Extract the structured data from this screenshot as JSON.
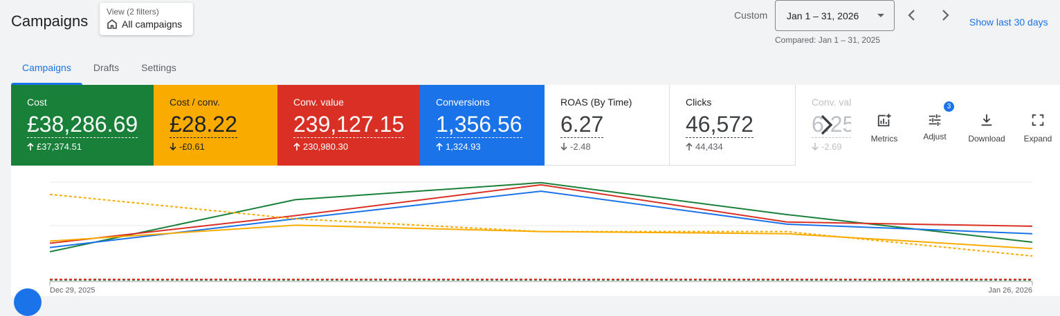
{
  "header": {
    "title": "Campaigns",
    "view_label": "View (2 filters)",
    "view_value": "All campaigns",
    "custom_label": "Custom",
    "date_range": "Jan 1 – 31, 2026",
    "compared": "Compared: Jan 1 – 31, 2025",
    "show_last": "Show last 30 days"
  },
  "tabs": [
    {
      "label": "Campaigns",
      "active": true
    },
    {
      "label": "Drafts",
      "active": false
    },
    {
      "label": "Settings",
      "active": false
    }
  ],
  "metrics": [
    {
      "name": "Cost",
      "value": "£38,286.69",
      "delta": "£37,374.51",
      "direction": "up",
      "color": "#188038"
    },
    {
      "name": "Cost / conv.",
      "value": "£28.22",
      "delta": "-£0.61",
      "direction": "down",
      "color": "#f9ab00"
    },
    {
      "name": "Conv. value",
      "value": "239,127.15",
      "delta": "230,980.30",
      "direction": "up",
      "color": "#d93025"
    },
    {
      "name": "Conversions",
      "value": "1,356.56",
      "delta": "1,324.93",
      "direction": "up",
      "color": "#1a73e8"
    },
    {
      "name": "ROAS (By Time)",
      "value": "6.27",
      "delta": "-2.48",
      "direction": "down"
    },
    {
      "name": "Clicks",
      "value": "46,572",
      "delta": "44,434",
      "direction": "up"
    },
    {
      "name": "Conv. val",
      "value": "6.25",
      "delta": "-2.69",
      "direction": "down"
    }
  ],
  "toolbar": {
    "metrics_label": "Metrics",
    "adjust_label": "Adjust",
    "adjust_badge": "3",
    "download_label": "Download",
    "expand_label": "Expand"
  },
  "chart_data": {
    "type": "line",
    "x_start_label": "Dec 29, 2025",
    "x_end_label": "Jan 26, 2026",
    "x": [
      0,
      1,
      2,
      3,
      4
    ],
    "series": [
      {
        "color": "#188038",
        "dashed": false,
        "values": [
          0.28,
          0.77,
          0.93,
          0.63,
          0.37
        ]
      },
      {
        "color": "#d93025",
        "dashed": false,
        "values": [
          0.36,
          0.62,
          0.91,
          0.56,
          0.52
        ]
      },
      {
        "color": "#1a73e8",
        "dashed": false,
        "values": [
          0.32,
          0.59,
          0.85,
          0.54,
          0.45
        ]
      },
      {
        "color": "#f9ab00",
        "dashed": false,
        "values": [
          0.38,
          0.53,
          0.47,
          0.45,
          0.31
        ]
      },
      {
        "color": "#f9ab00",
        "dashed": true,
        "values": [
          0.82,
          0.59,
          0.47,
          0.47,
          0.24
        ]
      },
      {
        "color": "#188038",
        "dashed": true,
        "values": [
          0.015,
          0.015,
          0.015,
          0.015,
          0.015
        ]
      },
      {
        "color": "#d93025",
        "dashed": true,
        "values": [
          0.02,
          0.02,
          0.02,
          0.02,
          0.02
        ]
      }
    ]
  }
}
